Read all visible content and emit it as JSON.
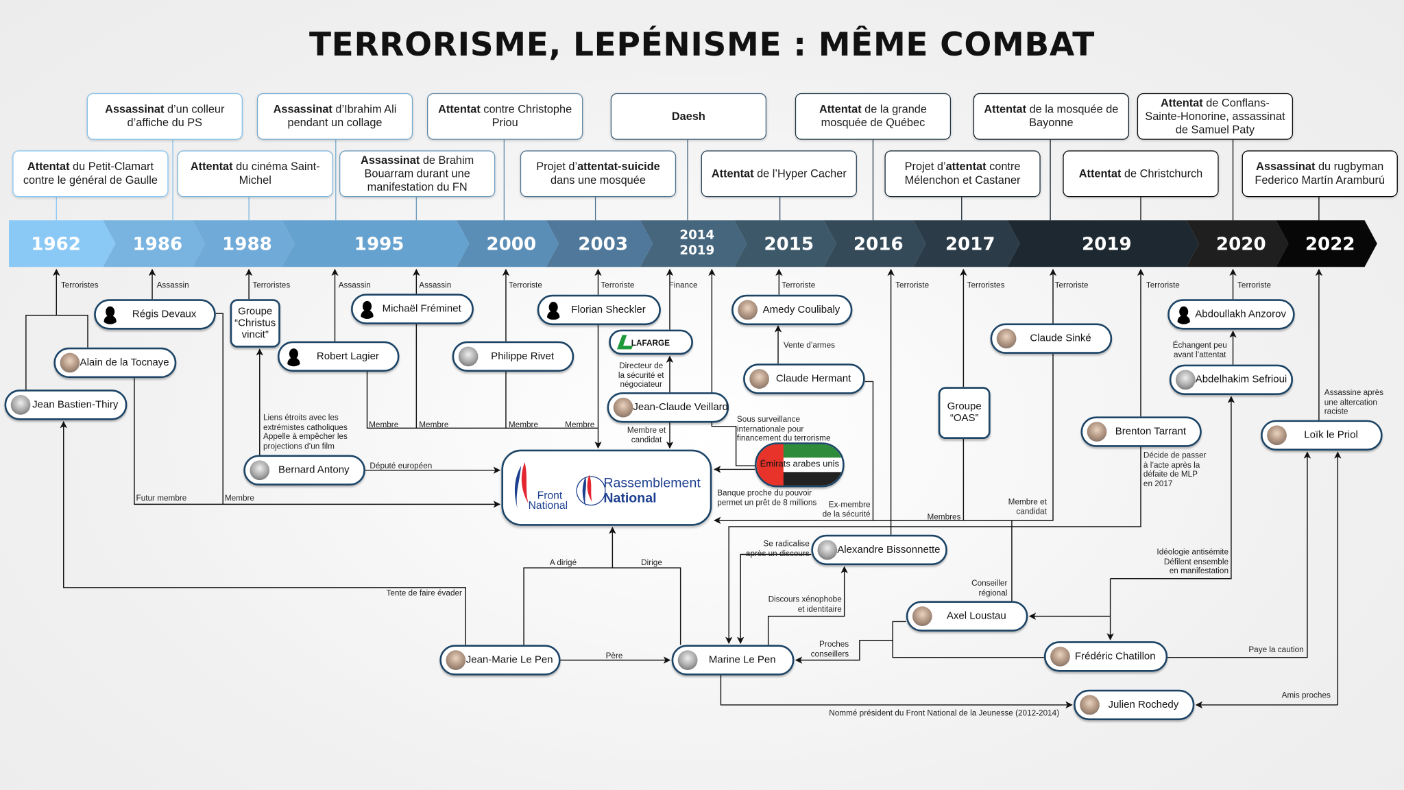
{
  "title": "TERRORISME, LEPÉNISME : MÊME COMBAT",
  "timeline": [
    "1962",
    "1986",
    "1988",
    "1995",
    "2000",
    "2003",
    "2014\n2019",
    "2015",
    "2016",
    "2017",
    "2019",
    "2020",
    "2022"
  ],
  "timeline_colors": [
    "#8ac8f5",
    "#79b4e0",
    "#70aad8",
    "#66a2d0",
    "#5a8eb7",
    "#50789b",
    "#46667e",
    "#3d5869",
    "#344a59",
    "#2b3c48",
    "#1d2830",
    "#1f1f20",
    "#070707"
  ],
  "events": [
    [
      {
        "b": "Attentat"
      },
      {
        "t": " du Petit-Clamart contre le général de Gaulle"
      }
    ],
    [
      {
        "b": "Assassinat"
      },
      {
        "t": " d’un colleur d’affiche du PS"
      }
    ],
    [
      {
        "b": "Attentat"
      },
      {
        "t": " du cinéma Saint-Michel"
      }
    ],
    [
      {
        "b": "Assassinat"
      },
      {
        "t": " d’Ibrahim Ali pendant un collage"
      }
    ],
    [
      {
        "b": "Assassinat"
      },
      {
        "t": " de Brahim Bouarram durant une manifestation du FN"
      }
    ],
    [
      {
        "b": "Attentat"
      },
      {
        "t": " contre Christophe Priou"
      }
    ],
    [
      {
        "t": "Projet d’"
      },
      {
        "b": "attentat-suicide"
      },
      {
        "t": " dans une mosquée"
      }
    ],
    [
      {
        "b": "Daesh"
      }
    ],
    [
      {
        "b": "Attentat"
      },
      {
        "t": " de l’Hyper Cacher"
      }
    ],
    [
      {
        "b": "Attentat"
      },
      {
        "t": " de la grande mosquée de Québec"
      }
    ],
    [
      {
        "t": "Projet d’"
      },
      {
        "b": "attentat"
      },
      {
        "t": " contre Mélenchon et Castaner"
      }
    ],
    [
      {
        "b": "Attentat"
      },
      {
        "t": " de la mosquée de Bayonne"
      }
    ],
    [
      {
        "b": "Attentat"
      },
      {
        "t": " de Christchurch"
      }
    ],
    [
      {
        "b": "Attentat"
      },
      {
        "t": " de Conflans-Sainte-Honorine, assassinat de Samuel Paty"
      }
    ],
    [
      {
        "b": "Assassinat"
      },
      {
        "t": " du rugbyman Federico Martín Aramburú"
      }
    ]
  ],
  "nodes": [
    {
      "name": "Régis Devaux",
      "avatar": "silhouette"
    },
    {
      "name": "Groupe\n“Christus\nvincit”",
      "avatar": "none"
    },
    {
      "name": "Alain de la Tocnaye",
      "avatar": "photo"
    },
    {
      "name": "Jean Bastien-Thiry",
      "avatar": "photo"
    },
    {
      "name": "Robert Lagier",
      "avatar": "silhouette"
    },
    {
      "name": "Michaël Fréminet",
      "avatar": "silhouette"
    },
    {
      "name": "Philippe Rivet",
      "avatar": "photo"
    },
    {
      "name": "Florian Sheckler",
      "avatar": "silhouette"
    },
    {
      "name": "Jean-Claude Veillard",
      "avatar": "photo"
    },
    {
      "name": "Bernard Antony",
      "avatar": "photo"
    },
    {
      "name": "Amedy Coulibaly",
      "avatar": "photo"
    },
    {
      "name": "Claude Hermant",
      "avatar": "photo"
    },
    {
      "name": "Groupe\n“OAS”",
      "avatar": "none"
    },
    {
      "name": "Claude Sinké",
      "avatar": "photo"
    },
    {
      "name": "Abdoullakh Anzorov",
      "avatar": "silhouette"
    },
    {
      "name": "Abdelhakim Sefrioui",
      "avatar": "photo"
    },
    {
      "name": "Brenton Tarrant",
      "avatar": "photo"
    },
    {
      "name": "Loïk le Priol",
      "avatar": "photo"
    },
    {
      "name": "Alexandre Bissonnette",
      "avatar": "photo"
    },
    {
      "name": "Axel Loustau",
      "avatar": "photo"
    },
    {
      "name": "Jean-Marie Le Pen",
      "avatar": "photo"
    },
    {
      "name": "Marine Le Pen",
      "avatar": "photo"
    },
    {
      "name": "Frédéric Chatillon",
      "avatar": "photo"
    },
    {
      "name": "Julien Rochedy",
      "avatar": "photo"
    }
  ],
  "lafarge": "LAFARGE",
  "uae": {
    "name": "Émirats arabes unis",
    "colors": [
      "#e8332a",
      "#2e8b3a",
      "#ffffff",
      "#222222"
    ]
  },
  "party": {
    "fn_line1": "Front",
    "fn_line2": "National",
    "rn_line1": "Rassemblement",
    "rn_line2": "National",
    "colors": [
      "#1d3f8f",
      "#e3262f"
    ]
  },
  "labels": [
    "Terroristes",
    "Assassin",
    "Terroristes",
    "Assassin",
    "Assassin",
    "Terroriste",
    "Terroriste",
    "Finance",
    "Terroriste",
    "Terroriste",
    "Terroristes",
    "Terroriste",
    "Terroriste",
    "Terroriste",
    "Vente d’armes",
    "Liens étroits avec les\nextrémistes catholiques\nAppelle à empêcher les\nprojections d’un film",
    "Membre",
    "Membre",
    "Membre",
    "Membre",
    "Directeur de\nla sécurité et\nnégociateur",
    "Membre et\ncandidat",
    "Sous surveillance\ninternationale pour\nfinancement du terrorisme",
    "Député européen",
    "Futur membre",
    "Membre",
    "Banque proche du pouvoir\npermet un prêt de 8 millions",
    "Ex-membre\nde la sécurité",
    "Membres",
    "Membre et\ncandidat",
    "Décide de passer\nà l’acte après la\ndéfaite de MLP\nen 2017",
    "Échangent peu\navant l’attentat",
    "Assassine après\nune altercation\nraciste",
    "Se radicalise\naprès un discours",
    "A dirigé",
    "Dirige",
    "Tente de faire évader",
    "Idéologie antisémite\nDéfilent ensemble\nen manifestation",
    "Conseiller\nrégional",
    "Discours xénophobe\net identitaire",
    "Proches\nconseillers",
    "Père",
    "Paye la caution",
    "Amis proches",
    "Nommé président du Front National de la Jeunesse (2012-2014)"
  ]
}
